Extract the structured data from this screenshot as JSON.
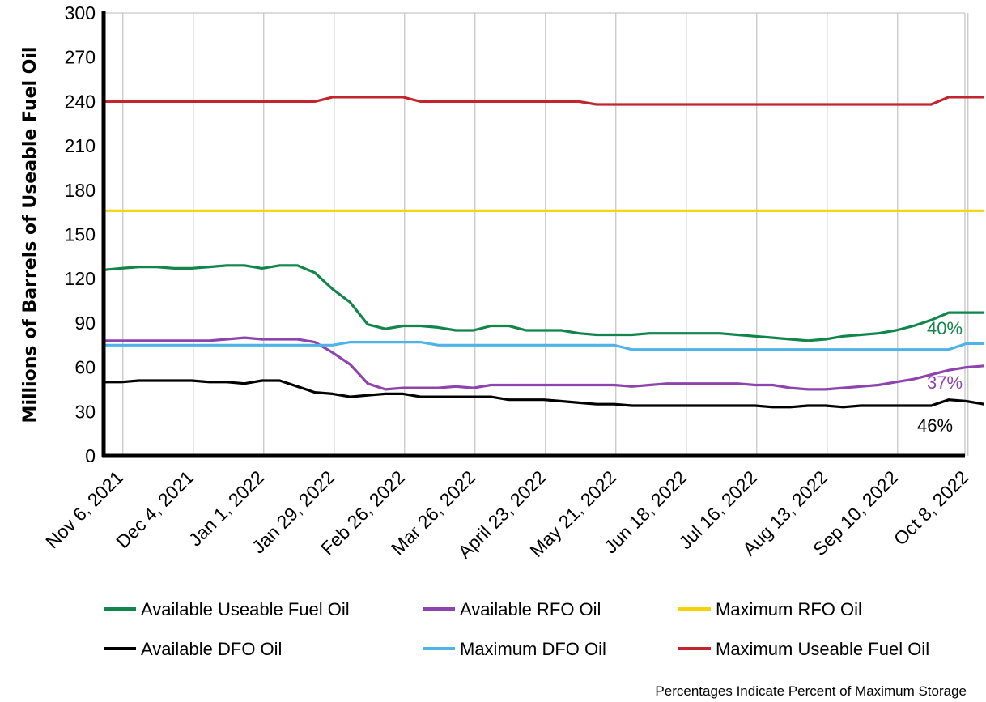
{
  "chart_data": {
    "type": "line",
    "title": "",
    "xlabel": "",
    "ylabel": "Millions of Barrels of Useable Fuel Oil",
    "ylim": [
      0,
      300
    ],
    "yticks": [
      0,
      30,
      60,
      90,
      120,
      150,
      180,
      210,
      240,
      270,
      300
    ],
    "grid": "vertical",
    "legend_placement": "bottom",
    "note": "Percentages Indicate Percent of Maximum Storage",
    "x": [
      "Oct 30, 2021",
      "Nov 6, 2021",
      "Nov 13, 2021",
      "Nov 20, 2021",
      "Nov 27, 2021",
      "Dec 4, 2021",
      "Dec 11, 2021",
      "Dec 18, 2021",
      "Dec 25, 2021",
      "Jan 1, 2022",
      "Jan 8, 2022",
      "Jan 15, 2022",
      "Jan 22, 2022",
      "Jan 29, 2022",
      "Feb 5, 2022",
      "Feb 12, 2022",
      "Feb 19, 2022",
      "Feb 26, 2022",
      "Mar 5, 2022",
      "Mar 12, 2022",
      "Mar 19, 2022",
      "Mar 26, 2022",
      "Apr 2, 2022",
      "Apr 9, 2022",
      "Apr 16, 2022",
      "April 23, 2022",
      "Apr 30, 2022",
      "May 7, 2022",
      "May 14, 2022",
      "May 21, 2022",
      "May 28, 2022",
      "Jun 4, 2022",
      "Jun 11, 2022",
      "Jun 18, 2022",
      "Jun 25, 2022",
      "Jul 2, 2022",
      "Jul 9, 2022",
      "Jul 16, 2022",
      "Jul 23, 2022",
      "Jul 30, 2022",
      "Aug 6, 2022",
      "Aug 13, 2022",
      "Aug 20, 2022",
      "Aug 27, 2022",
      "Sep 3, 2022",
      "Sep 10, 2022",
      "Sep 17, 2022",
      "Sep 24, 2022",
      "Oct 1, 2022",
      "Oct 8, 2022",
      "Oct 15, 2022"
    ],
    "tick_labels": [
      "Nov 6, 2021",
      "Dec 4, 2021",
      "Jan 1, 2022",
      "Jan 29, 2022",
      "Feb 26, 2022",
      "Mar 26, 2022",
      "April 23, 2022",
      "May 21, 2022",
      "Jun 18, 2022",
      "Jul 16, 2022",
      "Aug 13, 2022",
      "Sep 10, 2022",
      "Oct 8, 2022"
    ],
    "series": [
      {
        "name": "Maximum Useable Fuel Oil",
        "color": "#c0262d",
        "values": [
          240,
          240,
          240,
          240,
          240,
          240,
          240,
          240,
          240,
          240,
          240,
          240,
          240,
          243,
          243,
          243,
          243,
          243,
          240,
          240,
          240,
          240,
          240,
          240,
          240,
          240,
          240,
          240,
          238,
          238,
          238,
          238,
          238,
          238,
          238,
          238,
          238,
          238,
          238,
          238,
          238,
          238,
          238,
          238,
          238,
          238,
          238,
          238,
          243,
          243,
          243
        ]
      },
      {
        "name": "Maximum RFO Oil",
        "color": "#f5d20c",
        "values": [
          166,
          166,
          166,
          166,
          166,
          166,
          166,
          166,
          166,
          166,
          166,
          166,
          166,
          166,
          166,
          166,
          166,
          166,
          166,
          166,
          166,
          166,
          166,
          166,
          166,
          166,
          166,
          166,
          166,
          166,
          166,
          166,
          166,
          166,
          166,
          166,
          166,
          166,
          166,
          166,
          166,
          166,
          166,
          166,
          166,
          166,
          166,
          166,
          166,
          166,
          166
        ]
      },
      {
        "name": "Available Useable Fuel Oil",
        "color": "#12854b",
        "values": [
          126,
          127,
          128,
          128,
          127,
          127,
          128,
          129,
          129,
          127,
          129,
          129,
          124,
          113,
          104,
          89,
          86,
          88,
          88,
          87,
          85,
          85,
          88,
          88,
          85,
          85,
          85,
          83,
          82,
          82,
          82,
          83,
          83,
          83,
          83,
          83,
          82,
          81,
          80,
          79,
          78,
          79,
          81,
          82,
          83,
          85,
          88,
          92,
          97,
          97,
          97
        ]
      },
      {
        "name": "Available RFO Oil",
        "color": "#8e44ad",
        "values": [
          78,
          78,
          78,
          78,
          78,
          78,
          78,
          79,
          80,
          79,
          79,
          79,
          77,
          70,
          62,
          49,
          45,
          46,
          46,
          46,
          47,
          46,
          48,
          48,
          48,
          48,
          48,
          48,
          48,
          48,
          47,
          48,
          49,
          49,
          49,
          49,
          49,
          48,
          48,
          46,
          45,
          45,
          46,
          47,
          48,
          50,
          52,
          55,
          58,
          60,
          61
        ]
      },
      {
        "name": "Maximum DFO Oil",
        "color": "#4fb3e8",
        "values": [
          75,
          75,
          75,
          75,
          75,
          75,
          75,
          75,
          75,
          75,
          75,
          75,
          75,
          75,
          77,
          77,
          77,
          77,
          77,
          75,
          75,
          75,
          75,
          75,
          75,
          75,
          75,
          75,
          75,
          75,
          72,
          72,
          72,
          72,
          72,
          72,
          72,
          72,
          72,
          72,
          72,
          72,
          72,
          72,
          72,
          72,
          72,
          72,
          72,
          76,
          76
        ]
      },
      {
        "name": "Available DFO Oil",
        "color": "#000000",
        "values": [
          50,
          50,
          51,
          51,
          51,
          51,
          50,
          50,
          49,
          51,
          51,
          47,
          43,
          42,
          40,
          41,
          42,
          42,
          40,
          40,
          40,
          40,
          40,
          38,
          38,
          38,
          37,
          36,
          35,
          35,
          34,
          34,
          34,
          34,
          34,
          34,
          34,
          34,
          33,
          33,
          34,
          34,
          33,
          34,
          34,
          34,
          34,
          34,
          38,
          37,
          35
        ]
      }
    ],
    "annotations": [
      {
        "series": "Available Useable Fuel Oil",
        "text": "40%",
        "color": "#12854b"
      },
      {
        "series": "Available RFO Oil",
        "text": "37%",
        "color": "#8e44ad"
      },
      {
        "series": "Available DFO Oil",
        "text": "46%",
        "color": "#000000"
      }
    ],
    "legend_order": [
      "Available Useable Fuel Oil",
      "Available RFO Oil",
      "Maximum RFO Oil",
      "Available DFO Oil",
      "Maximum DFO Oil",
      "Maximum Useable Fuel Oil"
    ]
  }
}
